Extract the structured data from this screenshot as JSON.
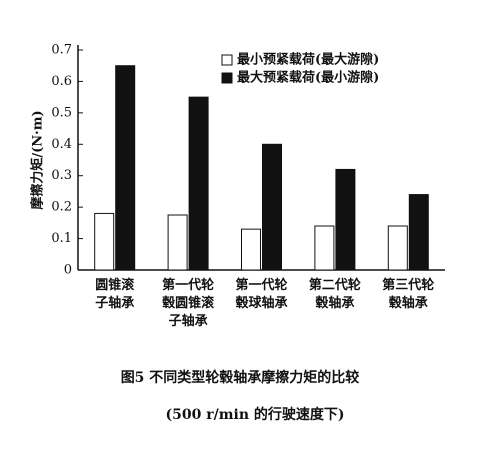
{
  "chart_data": {
    "type": "bar",
    "y_label": "摩擦力矩/(N·m)",
    "categories": [
      "圆锥滚\n子轴承",
      "第一代轮\n毂圆锥滚\n子轴承",
      "第一代轮\n毂球轴承",
      "第二代轮\n毂轴承",
      "第三代轮\n毂轴承"
    ],
    "series": [
      {
        "name": "最小预紧载荷(最大游隙)",
        "color": "#ffffff",
        "values": [
          0.18,
          0.175,
          0.13,
          0.14,
          0.14
        ]
      },
      {
        "name": "最大预紧载荷(最小游隙)",
        "color": "#111111",
        "values": [
          0.65,
          0.55,
          0.4,
          0.32,
          0.24
        ]
      }
    ],
    "ylim": [
      0,
      0.7
    ],
    "yticks": [
      0,
      0.1,
      0.2,
      0.3,
      0.4,
      0.5,
      0.6,
      0.7
    ],
    "caption": "图5  不同类型轮毂轴承摩擦力矩的比较",
    "subcaption": "(500 r/min 的行驶速度下)"
  }
}
